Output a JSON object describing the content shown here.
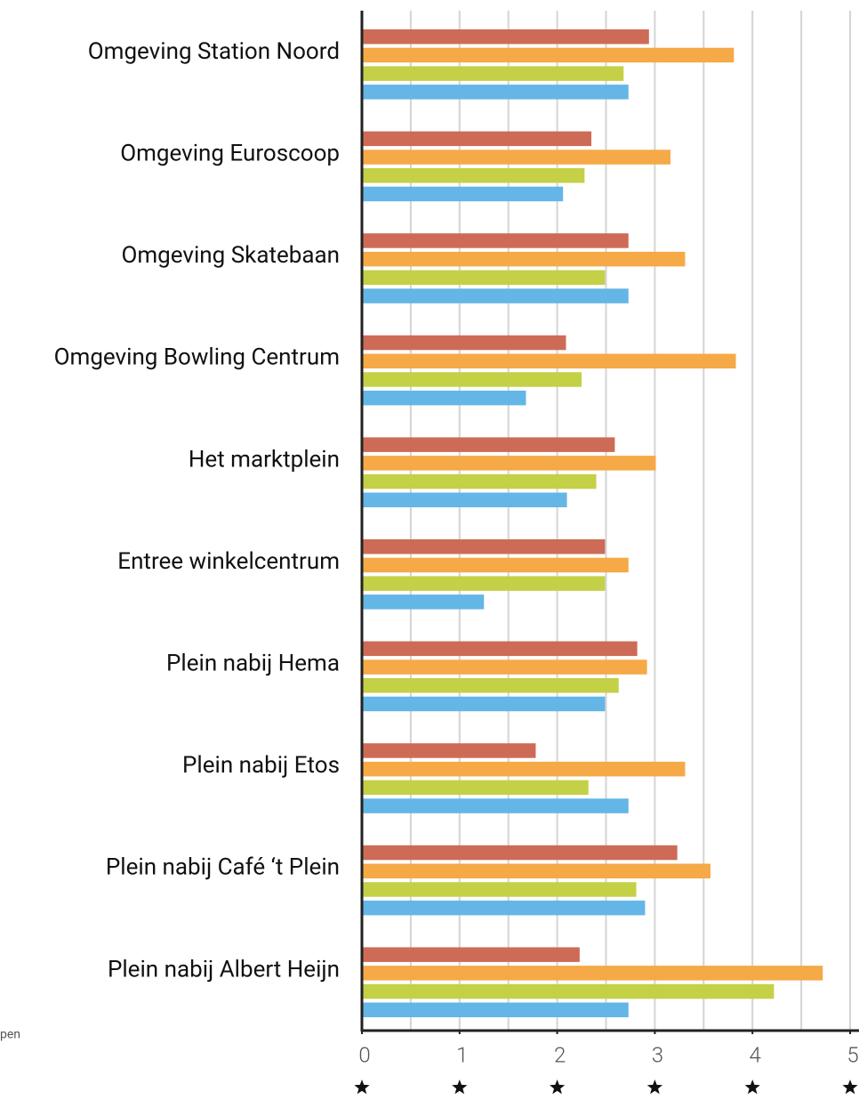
{
  "chart_data": {
    "type": "hbar",
    "categories": [
      "Omgeving Station Noord",
      "Omgeving Euroscoop",
      "Omgeving Skatebaan",
      "Omgeving Bowling Centrum",
      "Het marktplein",
      "Entree winkelcentrum",
      "Plein nabij Hema",
      "Plein nabij Etos",
      "Plein nabij Café ‘t Plein",
      "Plein nabij Albert Heijn"
    ],
    "series": [
      {
        "color": "#cd6b57",
        "values": [
          2.94,
          2.35,
          2.73,
          2.09,
          2.59,
          2.49,
          2.82,
          1.78,
          3.23,
          2.23
        ]
      },
      {
        "color": "#f5a947",
        "values": [
          3.81,
          3.16,
          3.31,
          3.83,
          3.01,
          2.73,
          2.92,
          3.31,
          3.57,
          4.72
        ]
      },
      {
        "color": "#c4d046",
        "values": [
          2.68,
          2.28,
          2.49,
          2.25,
          2.4,
          2.49,
          2.63,
          2.32,
          2.81,
          4.22
        ]
      },
      {
        "color": "#63b6e6",
        "values": [
          2.73,
          2.06,
          2.73,
          1.68,
          2.1,
          1.25,
          2.49,
          2.73,
          2.9,
          2.73
        ]
      }
    ],
    "xlim": [
      0,
      5
    ],
    "xticks": [
      0,
      1,
      2,
      3,
      4,
      5
    ],
    "xgrid": [
      0.5,
      1,
      1.5,
      2,
      2.5,
      3,
      3.5,
      4,
      4.5,
      5
    ],
    "footnote": "pen"
  }
}
